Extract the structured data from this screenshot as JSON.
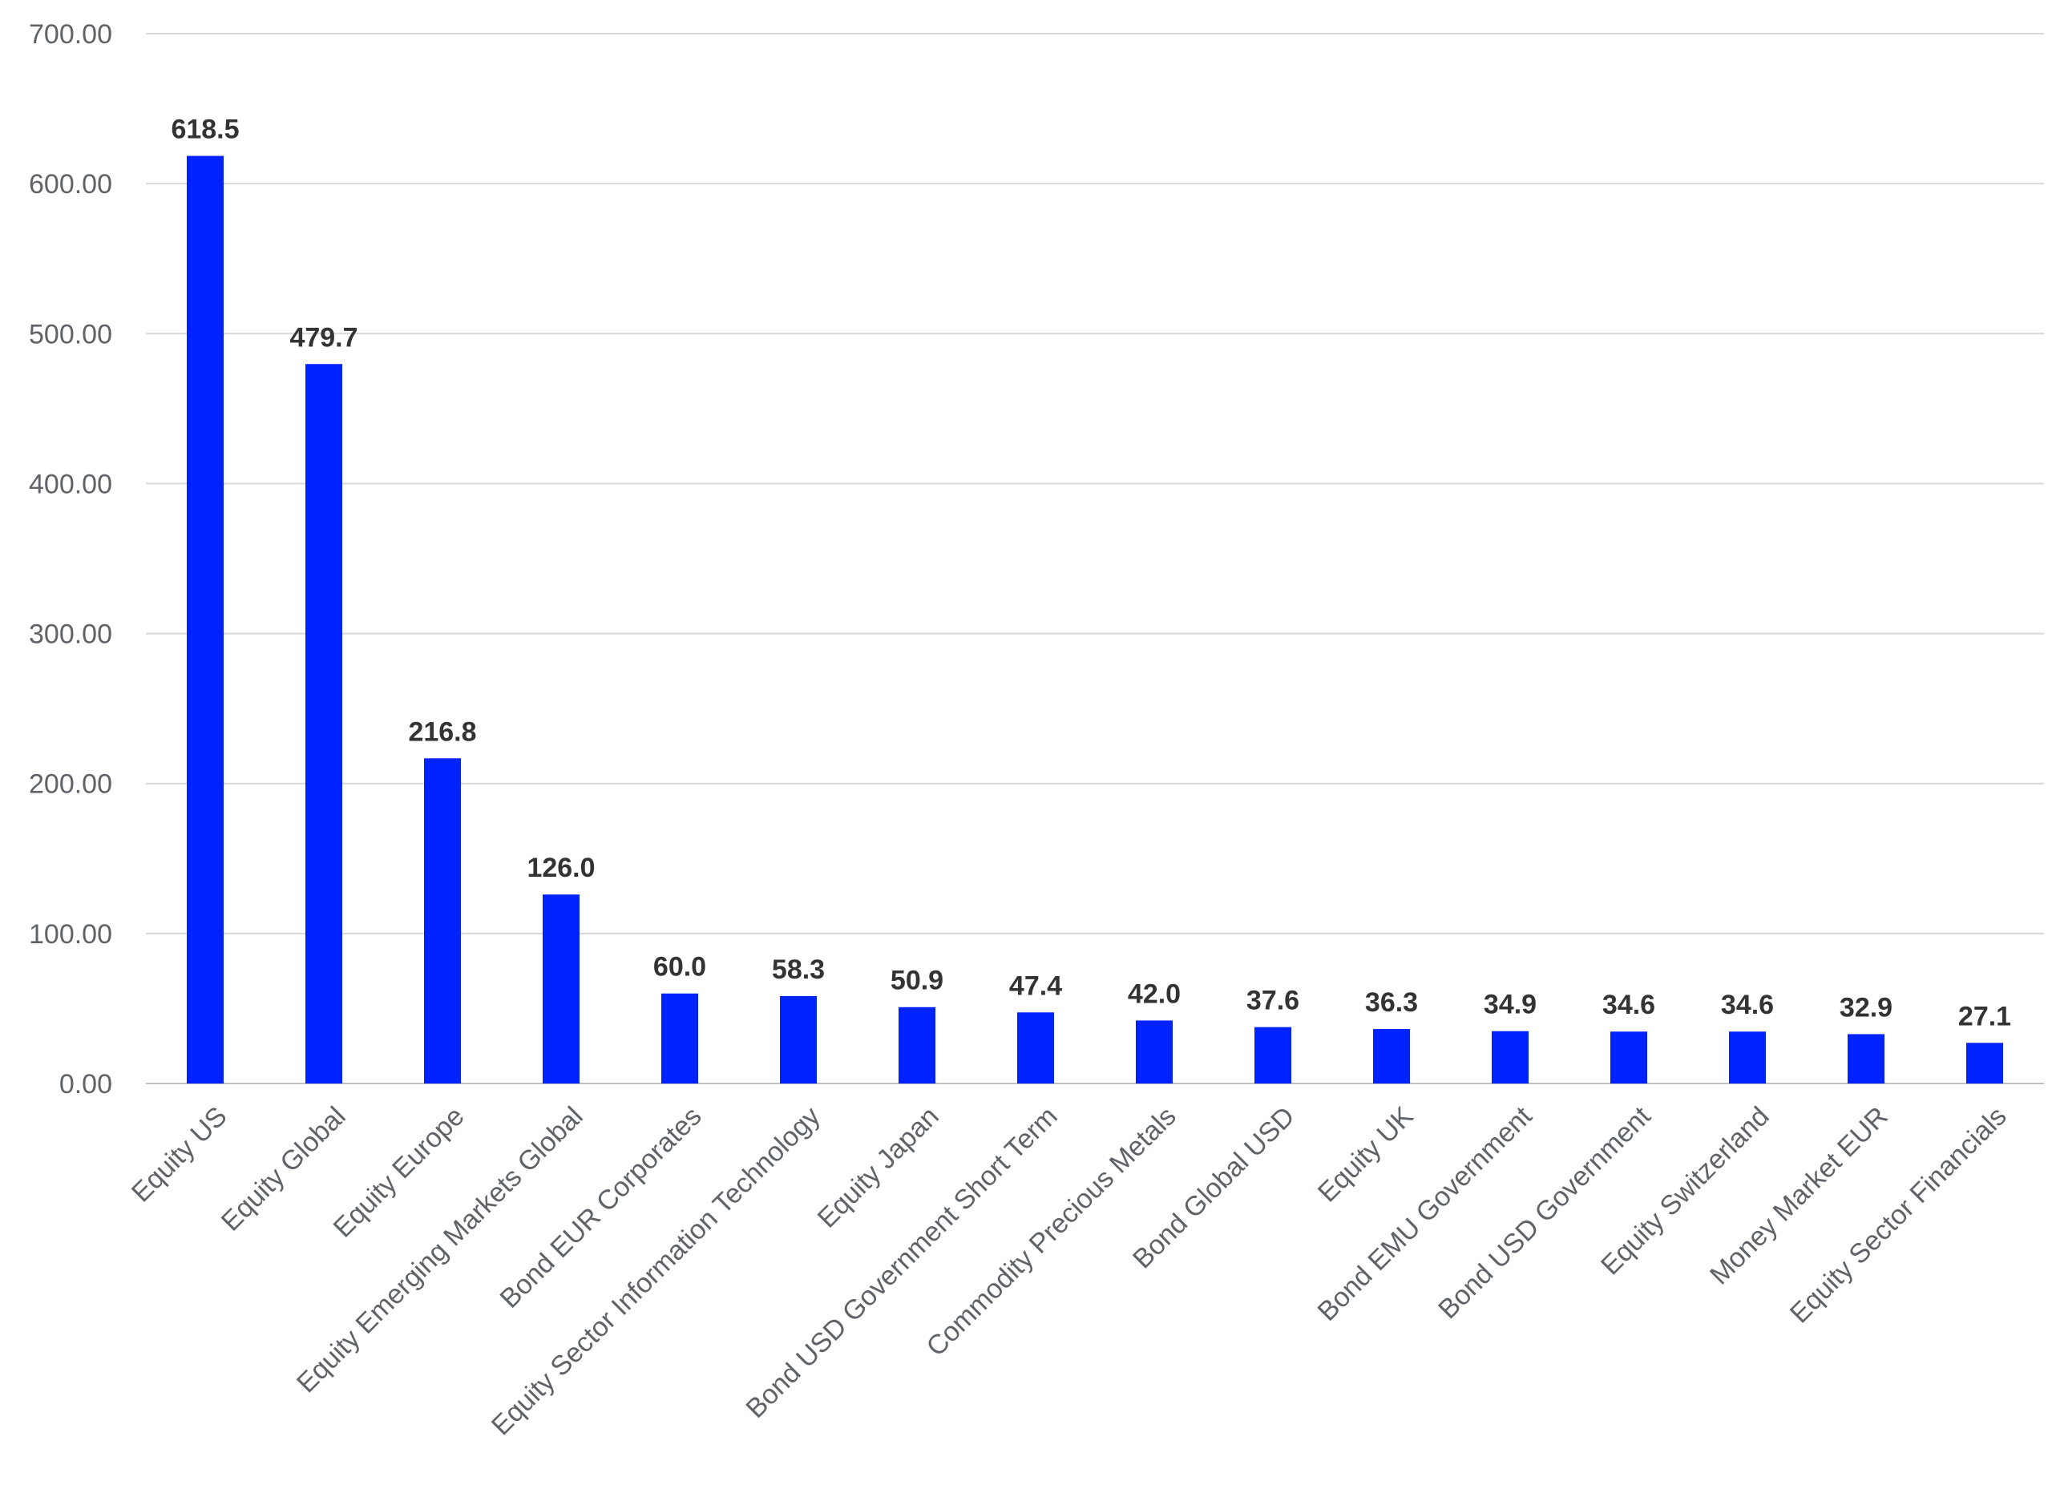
{
  "chart_data": {
    "type": "bar",
    "title": "",
    "xlabel": "",
    "ylabel": "",
    "ylim": [
      0,
      700
    ],
    "yticks": [
      0,
      100,
      200,
      300,
      400,
      500,
      600,
      700
    ],
    "ytick_labels": [
      "0.00",
      "100.00",
      "200.00",
      "300.00",
      "400.00",
      "500.00",
      "600.00",
      "700.00"
    ],
    "grid": true,
    "legend": "none",
    "bar_color": "#0022ff",
    "categories": [
      "Equity US",
      "Equity Global",
      "Equity Europe",
      "Equity Emerging Markets Global",
      "Bond EUR Corporates",
      "Equity Sector Information Technology",
      "Equity Japan",
      "Bond USD Government Short Term",
      "Commodity Precious Metals",
      "Bond Global USD",
      "Equity UK",
      "Bond EMU Government",
      "Bond USD Government",
      "Equity Switzerland",
      "Money Market EUR",
      "Equity Sector Financials"
    ],
    "values": [
      618.5,
      479.7,
      216.8,
      126.0,
      60.0,
      58.3,
      50.9,
      47.4,
      42.0,
      37.6,
      36.3,
      34.9,
      34.6,
      34.6,
      32.9,
      27.1
    ],
    "data_labels": [
      "618.5",
      "479.7",
      "216.8",
      "126.0",
      "60.0",
      "58.3",
      "50.9",
      "47.4",
      "42.0",
      "37.6",
      "36.3",
      "34.9",
      "34.6",
      "34.6",
      "32.9",
      "27.1"
    ]
  }
}
